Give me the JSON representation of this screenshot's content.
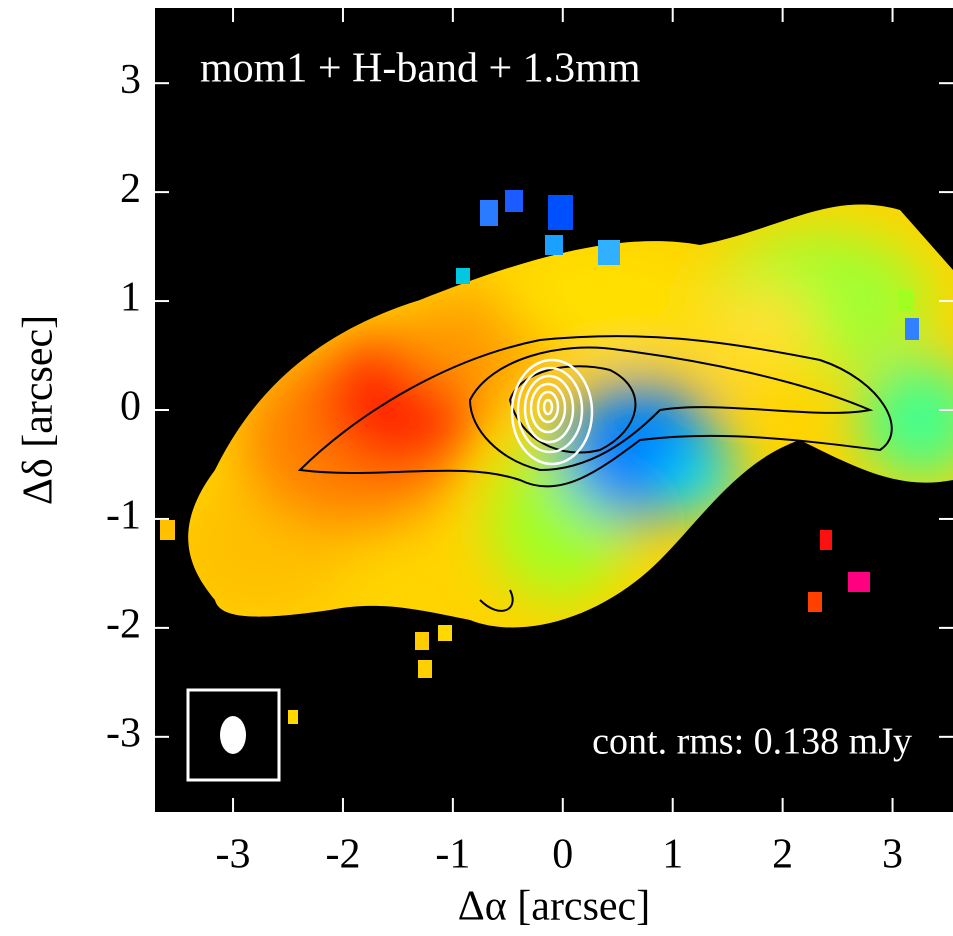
{
  "chart_data": {
    "type": "image",
    "annotation": "mom1 + H-band + 1.3mm",
    "note": "cont. rms: 0.138 mJy",
    "xlabel": "Δα [arcsec]",
    "ylabel": "Δδ [arcsec]",
    "xlim": [
      -3.71,
      3.55
    ],
    "ylim": [
      -3.69,
      3.69
    ],
    "xticks": [
      -3,
      -2,
      -1,
      0,
      1,
      2,
      3
    ],
    "yticks": [
      -3,
      -2,
      -1,
      0,
      1,
      2,
      3
    ]
  }
}
